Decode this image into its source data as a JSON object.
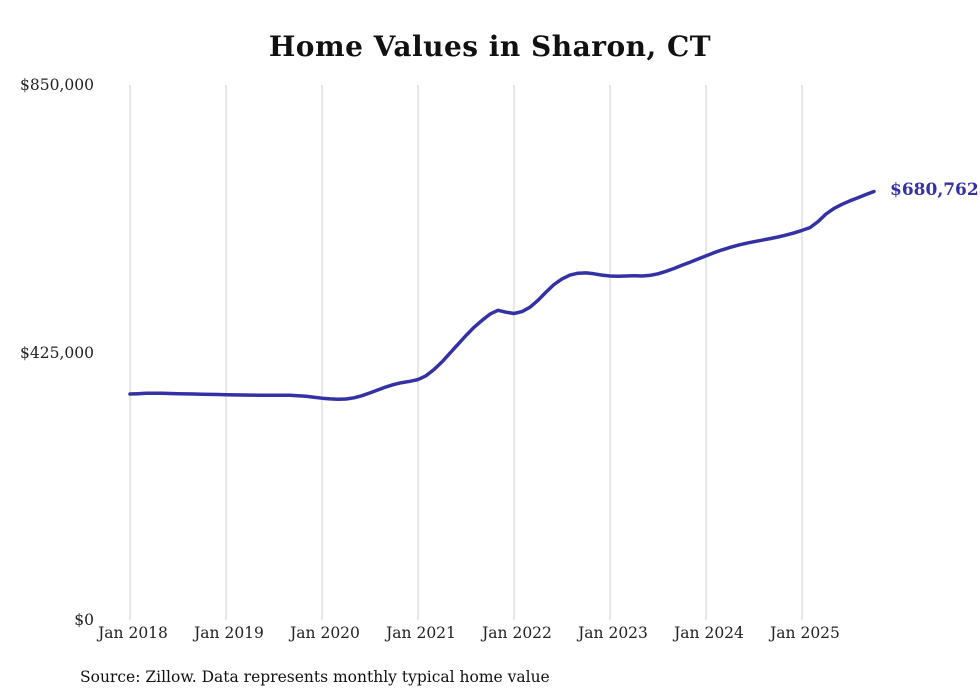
{
  "title": "Home Values in Sharon, CT",
  "source_note": "Source: Zillow. Data represents monthly typical home value",
  "end_label": "$680,762",
  "accent_color": "#3431a5",
  "grid_color": "#cfcfcf",
  "chart_data": {
    "type": "line",
    "title": "Home Values in Sharon, CT",
    "xlabel": "",
    "ylabel": "",
    "ylim": [
      0,
      850000
    ],
    "y_ticks": [
      0,
      425000,
      850000
    ],
    "y_tick_labels": [
      "$0",
      "$425,000",
      "$850,000"
    ],
    "x_tick_labels": [
      "Jan 2018",
      "Jan 2019",
      "Jan 2020",
      "Jan 2021",
      "Jan 2022",
      "Jan 2023",
      "Jan 2024",
      "Jan 2025"
    ],
    "x_start": "2018-01",
    "x_interval": "month",
    "grid": "vertical-only",
    "legend": "none",
    "final_value": 680762,
    "series": [
      {
        "name": "Monthly typical home value",
        "values": [
          359000,
          359600,
          360100,
          360300,
          360100,
          359800,
          359500,
          359200,
          359000,
          358700,
          358400,
          358200,
          358000,
          357700,
          357500,
          357300,
          357100,
          357000,
          357100,
          357200,
          357000,
          356400,
          355400,
          354000,
          352400,
          351300,
          350800,
          351200,
          353000,
          356400,
          360800,
          365600,
          370400,
          374300,
          377100,
          379200,
          382000,
          388000,
          398000,
          410000,
          424000,
          438000,
          452000,
          465000,
          476000,
          486000,
          492000,
          489000,
          487000,
          490000,
          497000,
          508000,
          521000,
          533000,
          542000,
          548000,
          551000,
          551500,
          550000,
          548000,
          546500,
          546000,
          546500,
          547000,
          546500,
          547500,
          550000,
          554000,
          558500,
          563500,
          568500,
          573500,
          578500,
          583500,
          588000,
          592000,
          595500,
          598500,
          601000,
          603500,
          606000,
          608500,
          611500,
          615000,
          619000,
          623500,
          633000,
          645000,
          654000,
          660500,
          666000,
          671000,
          676000,
          680762
        ]
      }
    ]
  }
}
